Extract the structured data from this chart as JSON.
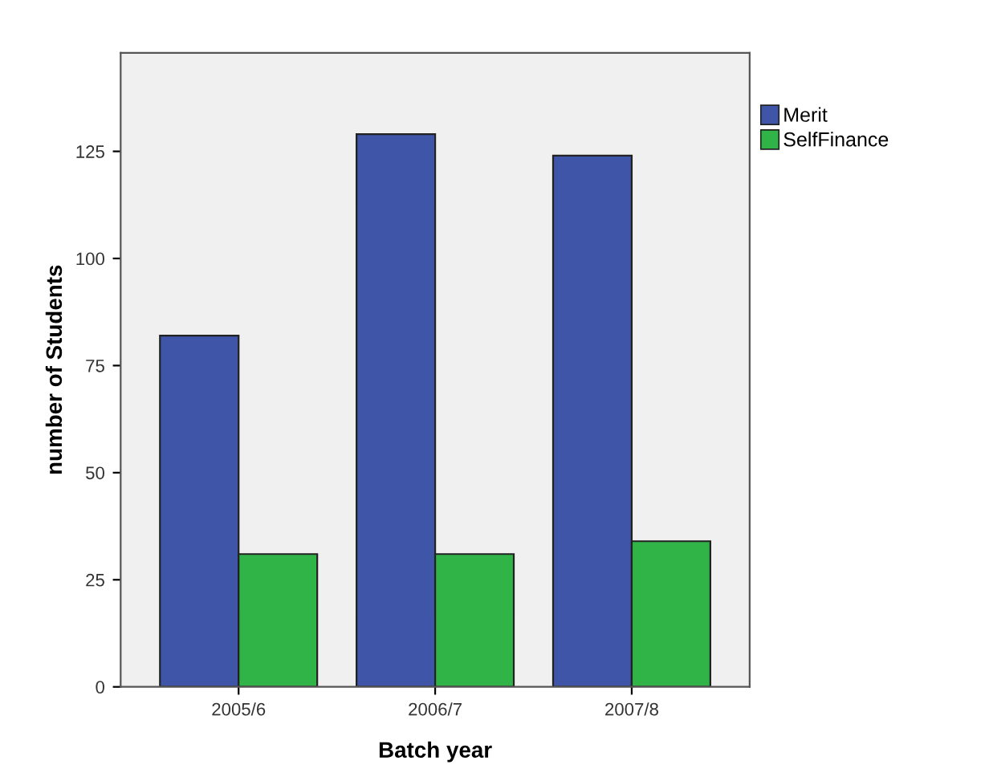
{
  "chart_data": {
    "type": "bar",
    "xlabel": "Batch year",
    "ylabel": "number of Students",
    "categories": [
      "2005/6",
      "2006/7",
      "2007/8"
    ],
    "series": [
      {
        "name": "Merit",
        "color": "#3f55a8",
        "values": [
          82,
          129,
          124
        ]
      },
      {
        "name": "SelfFinance",
        "color": "#30b448",
        "values": [
          31,
          31,
          34
        ]
      }
    ],
    "ylim": [
      0,
      148
    ],
    "yticks": [
      0,
      25,
      50,
      75,
      100,
      125
    ],
    "grid": false,
    "legend": "top right"
  }
}
